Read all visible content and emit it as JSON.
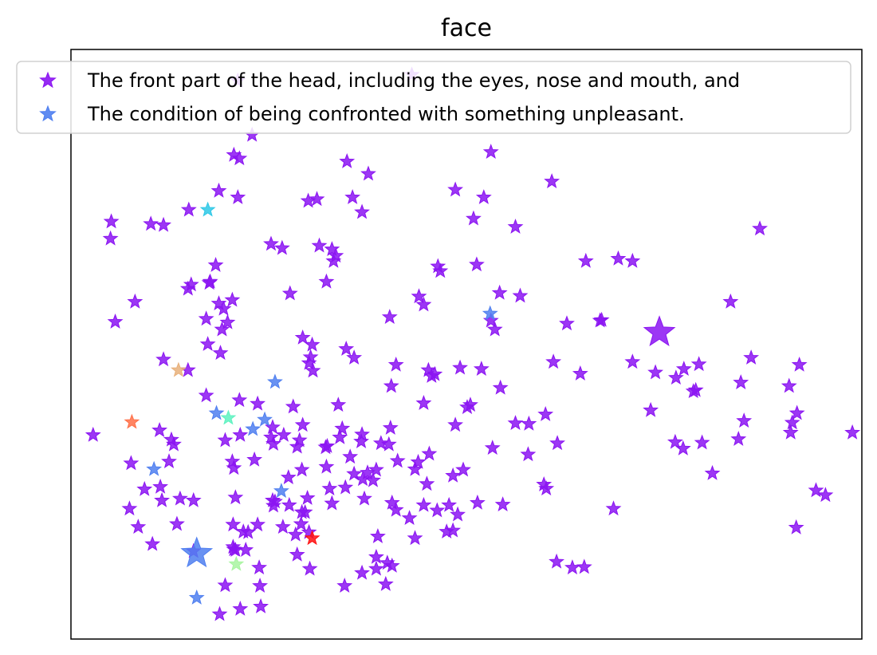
{
  "chart_data": {
    "type": "scatter",
    "title": "face",
    "xlabel": "",
    "ylabel": "",
    "xlim": [
      0,
      100
    ],
    "ylim": [
      0,
      100
    ],
    "ticks_shown": false,
    "grid": false,
    "legend_placement": "top",
    "marker": "star",
    "colors": {
      "purple": "#8b14f2",
      "blue": "#4f7ff0",
      "cyan": "#2ec8e6",
      "teal": "#5df2c0",
      "mint": "#a8f5a0",
      "tan": "#e8b07a",
      "orange": "#ff7048",
      "red": "#ff1010"
    },
    "series": [
      {
        "name": "The front part of the head, including the eyes, nose and mouth, and",
        "color": "purple",
        "big_point": [
          74.4,
          52.0
        ],
        "points": [
          [
            21.1,
            94.7
          ],
          [
            43.1,
            95.7
          ],
          [
            22.9,
            85.5
          ],
          [
            20.6,
            82.1
          ],
          [
            21.3,
            81.5
          ],
          [
            34.9,
            81.0
          ],
          [
            37.6,
            78.9
          ],
          [
            53.1,
            82.6
          ],
          [
            60.8,
            77.6
          ],
          [
            48.6,
            76.2
          ],
          [
            18.7,
            76.0
          ],
          [
            21.1,
            74.9
          ],
          [
            30.0,
            74.3
          ],
          [
            31.1,
            74.6
          ],
          [
            35.6,
            74.9
          ],
          [
            52.2,
            74.9
          ],
          [
            14.9,
            72.8
          ],
          [
            36.8,
            72.4
          ],
          [
            5.1,
            70.8
          ],
          [
            10.1,
            70.4
          ],
          [
            11.7,
            70.2
          ],
          [
            50.9,
            71.3
          ],
          [
            56.2,
            69.9
          ],
          [
            87.1,
            69.6
          ],
          [
            5.0,
            67.9
          ],
          [
            25.3,
            67.0
          ],
          [
            26.7,
            66.3
          ],
          [
            31.4,
            66.7
          ],
          [
            33.0,
            66.1
          ],
          [
            33.5,
            65.0
          ],
          [
            33.2,
            64.1
          ],
          [
            18.3,
            63.4
          ],
          [
            46.4,
            63.2
          ],
          [
            51.3,
            63.5
          ],
          [
            46.7,
            62.4
          ],
          [
            65.1,
            64.1
          ],
          [
            69.2,
            64.5
          ],
          [
            71.0,
            64.1
          ],
          [
            15.2,
            60.1
          ],
          [
            17.6,
            60.6
          ],
          [
            14.8,
            59.4
          ],
          [
            17.5,
            60.4
          ],
          [
            32.3,
            60.6
          ],
          [
            27.7,
            58.6
          ],
          [
            56.8,
            58.2
          ],
          [
            54.2,
            58.7
          ],
          [
            8.1,
            57.2
          ],
          [
            18.7,
            56.9
          ],
          [
            20.4,
            57.5
          ],
          [
            19.3,
            56.0
          ],
          [
            44.0,
            58.1
          ],
          [
            44.6,
            56.7
          ],
          [
            83.4,
            57.2
          ],
          [
            5.6,
            53.8
          ],
          [
            17.1,
            54.3
          ],
          [
            19.8,
            53.7
          ],
          [
            19.1,
            52.5
          ],
          [
            40.3,
            54.6
          ],
          [
            53.1,
            54.0
          ],
          [
            53.6,
            52.5
          ],
          [
            62.7,
            53.5
          ],
          [
            67.1,
            54.1
          ],
          [
            66.9,
            54.0
          ],
          [
            29.3,
            51.1
          ],
          [
            17.3,
            50.0
          ],
          [
            30.5,
            49.9
          ],
          [
            34.8,
            49.2
          ],
          [
            18.9,
            48.5
          ],
          [
            30.3,
            47.8
          ],
          [
            11.7,
            47.4
          ],
          [
            35.8,
            47.7
          ],
          [
            30.1,
            46.8
          ],
          [
            41.1,
            46.5
          ],
          [
            49.2,
            46.0
          ],
          [
            61.0,
            47.0
          ],
          [
            71.0,
            47.0
          ],
          [
            79.4,
            46.6
          ],
          [
            86.0,
            47.7
          ],
          [
            30.6,
            45.5
          ],
          [
            14.8,
            45.6
          ],
          [
            45.2,
            45.6
          ],
          [
            51.9,
            45.8
          ],
          [
            64.4,
            45.0
          ],
          [
            73.9,
            45.2
          ],
          [
            77.5,
            45.8
          ],
          [
            92.1,
            46.5
          ],
          [
            45.6,
            44.6
          ],
          [
            46.0,
            44.9
          ],
          [
            76.5,
            44.3
          ],
          [
            84.7,
            43.5
          ],
          [
            40.5,
            42.9
          ],
          [
            54.3,
            42.6
          ],
          [
            78.7,
            42.0
          ],
          [
            79.0,
            42.2
          ],
          [
            90.8,
            42.9
          ],
          [
            17.1,
            41.3
          ],
          [
            21.3,
            40.5
          ],
          [
            23.6,
            39.9
          ],
          [
            28.1,
            39.4
          ],
          [
            33.8,
            39.7
          ],
          [
            44.6,
            40.0
          ],
          [
            50.5,
            39.7
          ],
          [
            50.1,
            39.3
          ],
          [
            60.0,
            38.1
          ],
          [
            56.2,
            36.6
          ],
          [
            73.3,
            38.8
          ],
          [
            91.8,
            38.3
          ],
          [
            11.2,
            35.4
          ],
          [
            25.5,
            35.9
          ],
          [
            34.3,
            35.7
          ],
          [
            40.4,
            35.8
          ],
          [
            48.6,
            36.3
          ],
          [
            57.9,
            36.5
          ],
          [
            85.1,
            37.0
          ],
          [
            91.2,
            36.7
          ],
          [
            2.8,
            34.6
          ],
          [
            26.9,
            34.6
          ],
          [
            29.3,
            36.3
          ],
          [
            34.0,
            34.2
          ],
          [
            21.4,
            34.6
          ],
          [
            25.3,
            34.2
          ],
          [
            28.9,
            33.7
          ],
          [
            32.4,
            32.7
          ],
          [
            36.7,
            33.5
          ],
          [
            40.2,
            33.0
          ],
          [
            12.7,
            33.8
          ],
          [
            13.0,
            33.0
          ],
          [
            19.5,
            33.7
          ],
          [
            25.6,
            33.1
          ],
          [
            28.6,
            32.6
          ],
          [
            32.2,
            32.5
          ],
          [
            36.8,
            34.7
          ],
          [
            39.2,
            33.2
          ],
          [
            53.3,
            32.4
          ],
          [
            61.5,
            33.2
          ],
          [
            57.8,
            31.3
          ],
          [
            76.4,
            33.4
          ],
          [
            77.4,
            32.3
          ],
          [
            79.8,
            33.3
          ],
          [
            84.4,
            33.9
          ],
          [
            91.0,
            35.0
          ],
          [
            98.8,
            35.0
          ],
          [
            7.6,
            29.8
          ],
          [
            12.4,
            30.1
          ],
          [
            20.4,
            30.1
          ],
          [
            23.2,
            30.4
          ],
          [
            29.2,
            28.7
          ],
          [
            32.3,
            29.2
          ],
          [
            35.3,
            30.9
          ],
          [
            41.3,
            30.2
          ],
          [
            43.9,
            30.0
          ],
          [
            45.3,
            31.4
          ],
          [
            37.5,
            28.2
          ],
          [
            43.5,
            28.8
          ],
          [
            38.6,
            28.7
          ],
          [
            35.8,
            28.0
          ],
          [
            27.5,
            27.4
          ],
          [
            20.6,
            29.0
          ],
          [
            9.3,
            25.4
          ],
          [
            11.3,
            25.8
          ],
          [
            32.7,
            25.5
          ],
          [
            34.7,
            25.7
          ],
          [
            36.9,
            27.1
          ],
          [
            38.2,
            26.9
          ],
          [
            45.0,
            26.3
          ],
          [
            48.3,
            27.7
          ],
          [
            49.6,
            28.7
          ],
          [
            81.1,
            28.1
          ],
          [
            59.8,
            26.2
          ],
          [
            60.1,
            25.5
          ],
          [
            94.2,
            25.2
          ],
          [
            95.4,
            24.4
          ],
          [
            13.8,
            23.8
          ],
          [
            20.8,
            24.0
          ],
          [
            29.9,
            23.9
          ],
          [
            25.8,
            23.3
          ],
          [
            33.0,
            23.0
          ],
          [
            40.6,
            23.1
          ],
          [
            37.1,
            23.8
          ],
          [
            41.1,
            21.9
          ],
          [
            44.6,
            22.7
          ],
          [
            51.4,
            23.1
          ],
          [
            47.8,
            22.7
          ],
          [
            42.8,
            20.5
          ],
          [
            11.5,
            23.5
          ],
          [
            15.5,
            23.5
          ],
          [
            25.5,
            23.5
          ],
          [
            27.6,
            22.7
          ],
          [
            7.4,
            22.1
          ],
          [
            29.6,
            21.5
          ],
          [
            25.6,
            22.6
          ],
          [
            29.2,
            21.5
          ],
          [
            46.3,
            21.8
          ],
          [
            48.9,
            21.1
          ],
          [
            8.5,
            19.0
          ],
          [
            13.4,
            19.5
          ],
          [
            20.5,
            19.4
          ],
          [
            23.6,
            19.4
          ],
          [
            26.8,
            19.0
          ],
          [
            29.1,
            19.5
          ],
          [
            30.1,
            18.1
          ],
          [
            21.8,
            18.2
          ],
          [
            38.8,
            17.4
          ],
          [
            43.5,
            17.1
          ],
          [
            20.5,
            15.6
          ],
          [
            20.8,
            15.1
          ],
          [
            22.1,
            15.1
          ],
          [
            22.4,
            18.1
          ],
          [
            28.4,
            17.7
          ],
          [
            47.5,
            18.2
          ],
          [
            48.3,
            18.4
          ],
          [
            54.6,
            22.8
          ],
          [
            68.6,
            22.1
          ],
          [
            91.7,
            18.9
          ],
          [
            23.8,
            12.1
          ],
          [
            30.2,
            11.9
          ],
          [
            36.8,
            11.2
          ],
          [
            38.6,
            11.9
          ],
          [
            40.0,
            12.9
          ],
          [
            61.4,
            13.1
          ],
          [
            63.4,
            12.1
          ],
          [
            64.9,
            12.2
          ],
          [
            40.6,
            12.4
          ],
          [
            38.6,
            13.9
          ],
          [
            28.6,
            14.3
          ],
          [
            20.6,
            15.2
          ],
          [
            10.3,
            16.1
          ],
          [
            19.5,
            9.1
          ],
          [
            39.8,
            9.3
          ],
          [
            34.6,
            9.0
          ],
          [
            23.9,
            9.0
          ],
          [
            21.4,
            5.1
          ],
          [
            24.0,
            5.5
          ],
          [
            18.8,
            4.2
          ],
          [
            15.5,
            14.9
          ]
        ]
      },
      {
        "name": "The condition of being confronted with something unpleasant.",
        "color": "blue",
        "big_point": [
          15.9,
          14.5
        ],
        "points": [
          [
            53.0,
            55.2
          ],
          [
            25.8,
            43.6
          ],
          [
            18.4,
            38.3
          ],
          [
            24.5,
            37.2
          ],
          [
            23.0,
            35.6
          ],
          [
            10.5,
            28.8
          ],
          [
            26.6,
            25.1
          ],
          [
            15.9,
            7.0
          ]
        ]
      }
    ],
    "other_points": [
      {
        "color": "cyan",
        "x": 17.3,
        "y": 72.8
      },
      {
        "color": "tan",
        "x": 13.6,
        "y": 45.6
      },
      {
        "color": "teal",
        "x": 19.9,
        "y": 37.5
      },
      {
        "color": "orange",
        "x": 7.7,
        "y": 36.8
      },
      {
        "color": "red",
        "x": 30.5,
        "y": 17.1
      },
      {
        "color": "mint",
        "x": 20.9,
        "y": 12.7
      }
    ]
  }
}
